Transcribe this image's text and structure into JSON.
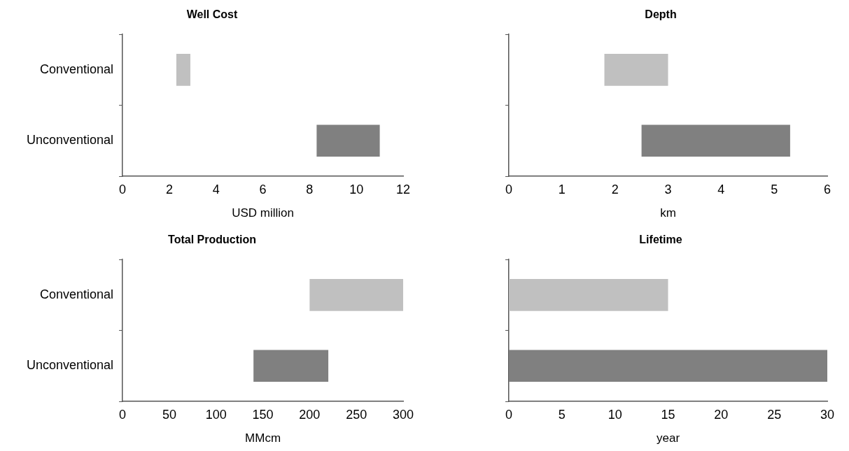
{
  "chart_data": [
    {
      "type": "bar",
      "orientation": "horizontal",
      "title": "Well Cost",
      "xlabel": "USD million",
      "categories": [
        "Conventional",
        "Unconventional"
      ],
      "base": [
        2.3,
        8.3
      ],
      "values": [
        0.6,
        2.7
      ],
      "colors": [
        "#c0c0c0",
        "#808080"
      ],
      "xlim": [
        0,
        12
      ],
      "xticks": [
        0,
        2,
        4,
        6,
        8,
        10,
        12
      ],
      "grid": false,
      "legend": false
    },
    {
      "type": "bar",
      "orientation": "horizontal",
      "title": "Depth",
      "xlabel": "km",
      "categories": [
        null,
        null
      ],
      "base": [
        1.8,
        2.5
      ],
      "values": [
        1.2,
        2.8
      ],
      "colors": [
        "#c0c0c0",
        "#808080"
      ],
      "xlim": [
        0,
        6
      ],
      "xticks": [
        0,
        1,
        2,
        3,
        4,
        5,
        6
      ],
      "grid": false,
      "legend": false
    },
    {
      "type": "bar",
      "orientation": "horizontal",
      "title": "Total Production",
      "xlabel": "MMcm",
      "categories": [
        "Conventional",
        "Unconventional"
      ],
      "base": [
        200,
        140
      ],
      "values": [
        100,
        80
      ],
      "colors": [
        "#c0c0c0",
        "#808080"
      ],
      "xlim": [
        0,
        300
      ],
      "xticks": [
        0,
        50,
        100,
        150,
        200,
        250,
        300
      ],
      "grid": false,
      "legend": false
    },
    {
      "type": "bar",
      "orientation": "horizontal",
      "title": "Lifetime",
      "xlabel": "year",
      "categories": [
        null,
        null
      ],
      "base": [
        0,
        0
      ],
      "values": [
        15,
        30
      ],
      "colors": [
        "#c0c0c0",
        "#808080"
      ],
      "xlim": [
        0,
        30
      ],
      "xticks": [
        0,
        5,
        10,
        15,
        20,
        25,
        30
      ],
      "grid": false,
      "legend": false
    }
  ]
}
